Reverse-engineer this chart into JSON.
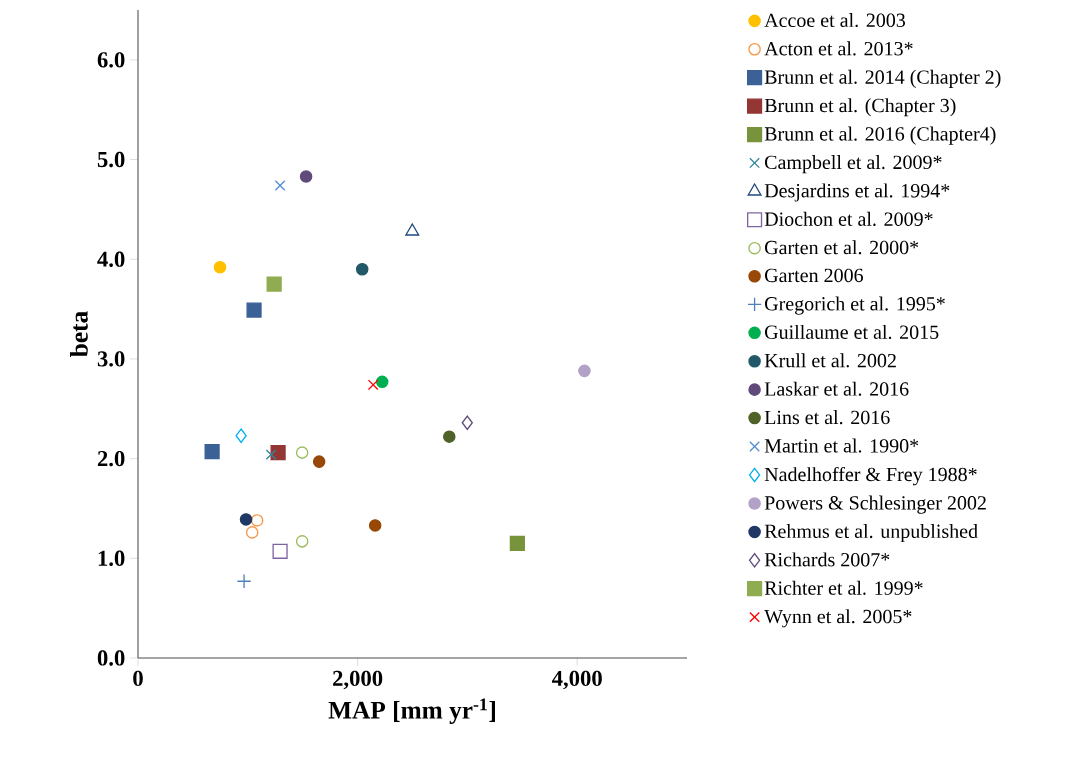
{
  "chart_data": {
    "type": "scatter",
    "xlabel": "MAP [mm yr$^{-1}$]",
    "ylabel": "beta",
    "xlim": [
      0,
      5000
    ],
    "ylim": [
      0,
      6.5
    ],
    "xticks": [
      0,
      {
        "value": 2000,
        "label": "2,000"
      },
      {
        "value": 4000,
        "label": "4,000"
      }
    ],
    "yticks": [
      {
        "value": 0,
        "label": "0.0"
      },
      {
        "value": 1,
        "label": "1.0"
      },
      {
        "value": 2,
        "label": "2.0"
      },
      {
        "value": 3,
        "label": "3.0"
      },
      {
        "value": 4,
        "label": "4.0"
      },
      {
        "value": 5,
        "label": "5.0"
      },
      {
        "value": 6,
        "label": "6.0"
      }
    ],
    "grid": false,
    "legend": "right",
    "series": [
      {
        "name": "Accoe et al. 2003",
        "color": "#ffc000",
        "marker": "circle",
        "x": [
          747
        ],
        "values": [
          3.92
        ]
      },
      {
        "name": "Acton et al. 2013*",
        "color": "#f79646",
        "marker": "circle-open",
        "x": [
          1085,
          1040
        ],
        "values": [
          1.38,
          1.26
        ]
      },
      {
        "name": "Brunn et al. 2014 (Chapter 2)",
        "color": "#3b6196",
        "marker": "square",
        "x": [
          1057,
          675
        ],
        "values": [
          3.49,
          2.07
        ]
      },
      {
        "name": "Brunn et al. (Chapter 3)",
        "color": "#943634",
        "marker": "square",
        "x": [
          1276
        ],
        "values": [
          2.06
        ]
      },
      {
        "name": "Brunn et al. 2016 (Chapter4)",
        "color": "#77933c",
        "marker": "square",
        "x": [
          3455
        ],
        "values": [
          1.15
        ]
      },
      {
        "name": "Campbell et al. 2009*",
        "color": "#31859c",
        "marker": "cross",
        "x": [
          1212
        ],
        "values": [
          2.04
        ]
      },
      {
        "name": "Desjardins et al. 1994*",
        "color": "#1f497d",
        "marker": "triangle-open",
        "x": [
          2498
        ],
        "values": [
          4.28
        ]
      },
      {
        "name": "Diochon et al. 2009*",
        "color": "#8064a2",
        "marker": "square-open",
        "x": [
          1294
        ],
        "values": [
          1.07
        ]
      },
      {
        "name": "Garten et al. 2000*",
        "color": "#9bbb59",
        "marker": "circle-open",
        "x": [
          1495,
          1495
        ],
        "values": [
          2.06,
          1.17
        ]
      },
      {
        "name": "Garten 2006",
        "color": "#984807",
        "marker": "circle",
        "x": [
          1650,
          2160
        ],
        "values": [
          1.97,
          1.33
        ]
      },
      {
        "name": "Gregorich et al. 1995*",
        "color": "#4f81bd",
        "marker": "plus",
        "x": [
          966
        ],
        "values": [
          0.77
        ]
      },
      {
        "name": "Guillaume et al. 2015",
        "color": "#00b050",
        "marker": "circle",
        "x": [
          2224
        ],
        "values": [
          2.77
        ]
      },
      {
        "name": "Krull et al. 2002",
        "color": "#215968",
        "marker": "circle",
        "x": [
          2042
        ],
        "values": [
          3.9
        ]
      },
      {
        "name": "Laskar et al. 2016",
        "color": "#604a7b",
        "marker": "circle",
        "x": [
          1531
        ],
        "values": [
          4.83
        ]
      },
      {
        "name": "Lins et al. 2016",
        "color": "#4f6228",
        "marker": "circle",
        "x": [
          2835
        ],
        "values": [
          2.22
        ]
      },
      {
        "name": "Martin et al. 1990*",
        "color": "#558ed5",
        "marker": "cross",
        "x": [
          1294
        ],
        "values": [
          4.74
        ]
      },
      {
        "name": "Nadelhoffer & Frey 1988*",
        "color": "#00b0f0",
        "marker": "diamond-open",
        "x": [
          939
        ],
        "values": [
          2.23
        ]
      },
      {
        "name": "Powers & Schlesinger 2002",
        "color": "#b3a2c7",
        "marker": "circle",
        "x": [
          4066
        ],
        "values": [
          2.88
        ]
      },
      {
        "name": "Rehmus et al. unpublished",
        "color": "#1f3864",
        "marker": "circle",
        "x": [
          984
        ],
        "values": [
          1.39
        ]
      },
      {
        "name": "Richards 2007*",
        "color": "#604a7b",
        "marker": "diamond-open",
        "x": [
          2999
        ],
        "values": [
          2.36
        ]
      },
      {
        "name": "Richter et al. 1999*",
        "color": "#8fac50",
        "marker": "square",
        "x": [
          1240
        ],
        "values": [
          3.75
        ]
      },
      {
        "name": "Wynn et al. 2005*",
        "color": "#ff0000",
        "marker": "cross",
        "x": [
          2142
        ],
        "values": [
          2.74
        ]
      }
    ]
  }
}
